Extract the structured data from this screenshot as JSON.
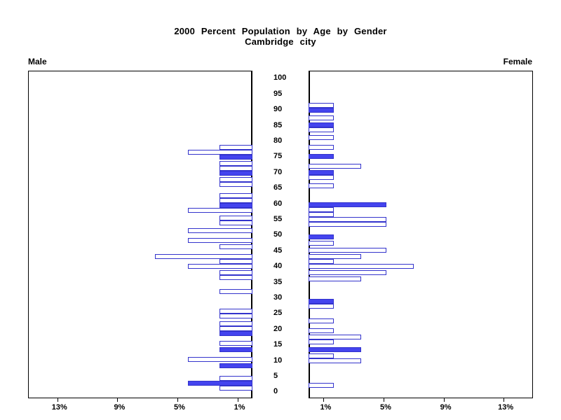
{
  "title": {
    "line1": "2000 Percent Population by Age by Gender",
    "line2": "Cambridge city"
  },
  "side_labels": {
    "male": "Male",
    "female": "Female"
  },
  "age_axis": {
    "tick_ages": [
      100,
      95,
      90,
      85,
      80,
      75,
      70,
      65,
      60,
      55,
      50,
      45,
      40,
      35,
      30,
      25,
      20,
      15,
      10,
      5,
      0
    ]
  },
  "pct_axis": {
    "male_ticks": [
      {
        "label": "13%",
        "value": 13
      },
      {
        "label": "9%",
        "value": 9
      },
      {
        "label": "5%",
        "value": 5
      },
      {
        "label": "1%",
        "value": 1
      }
    ],
    "female_ticks": [
      {
        "label": "1%",
        "value": 1
      },
      {
        "label": "5%",
        "value": 5
      },
      {
        "label": "9%",
        "value": 9
      },
      {
        "label": "13%",
        "value": 13
      }
    ]
  },
  "colors": {
    "bar_fill": "#4444ee",
    "bar_outline": "#3333cc",
    "bar_open_interior": "#ffffff",
    "axis": "#000000",
    "text": "#000000",
    "background": "#ffffff"
  },
  "chart_data": {
    "type": "bar",
    "subtype": "population-pyramid",
    "title": "2000 Percent Population by Age by Gender",
    "subtitle": "Cambridge city",
    "x_axis": {
      "tick_values_pct": [
        1,
        5,
        9,
        13
      ],
      "range_pct": [
        0,
        14.95
      ]
    },
    "y_axis": {
      "range_years": [
        0,
        100
      ],
      "tick_step_years": 5
    },
    "style_rule": "solid-filled bars occur at ages that are multiples of 5; all other bars are outlined (open)",
    "series": [
      {
        "name": "Male",
        "panel": "left",
        "unit_pct": 2.2,
        "points": [
          {
            "age": 78,
            "pct": 2.2,
            "filled": false
          },
          {
            "age": 77,
            "pct": 4.3,
            "filled": false
          },
          {
            "age": 75,
            "pct": 2.2,
            "filled": true
          },
          {
            "age": 73,
            "pct": 2.2,
            "filled": false
          },
          {
            "age": 72,
            "pct": 2.2,
            "filled": false
          },
          {
            "age": 70,
            "pct": 2.2,
            "filled": true
          },
          {
            "age": 68,
            "pct": 2.2,
            "filled": false
          },
          {
            "age": 67,
            "pct": 2.2,
            "filled": false
          },
          {
            "age": 63,
            "pct": 2.2,
            "filled": false
          },
          {
            "age": 62,
            "pct": 2.2,
            "filled": false
          },
          {
            "age": 60,
            "pct": 2.2,
            "filled": true
          },
          {
            "age": 59,
            "pct": 4.3,
            "filled": false
          },
          {
            "age": 56,
            "pct": 2.2,
            "filled": false
          },
          {
            "age": 55,
            "pct": 2.2,
            "filled": false
          },
          {
            "age": 52,
            "pct": 4.3,
            "filled": false
          },
          {
            "age": 49,
            "pct": 4.3,
            "filled": false
          },
          {
            "age": 47,
            "pct": 2.2,
            "filled": false
          },
          {
            "age": 44,
            "pct": 6.5,
            "filled": false
          },
          {
            "age": 43,
            "pct": 2.2,
            "filled": false
          },
          {
            "age": 41,
            "pct": 4.3,
            "filled": false
          },
          {
            "age": 39,
            "pct": 2.2,
            "filled": false
          },
          {
            "age": 38,
            "pct": 2.2,
            "filled": false
          },
          {
            "age": 33,
            "pct": 2.2,
            "filled": false
          },
          {
            "age": 27,
            "pct": 2.2,
            "filled": false
          },
          {
            "age": 26,
            "pct": 2.2,
            "filled": false
          },
          {
            "age": 23,
            "pct": 2.2,
            "filled": false
          },
          {
            "age": 22,
            "pct": 2.2,
            "filled": false
          },
          {
            "age": 20,
            "pct": 2.2,
            "filled": true
          },
          {
            "age": 17,
            "pct": 2.2,
            "filled": false
          },
          {
            "age": 15,
            "pct": 2.2,
            "filled": true
          },
          {
            "age": 12,
            "pct": 4.3,
            "filled": false
          },
          {
            "age": 10,
            "pct": 2.2,
            "filled": true
          },
          {
            "age": 6,
            "pct": 2.2,
            "filled": false
          },
          {
            "age": 5,
            "pct": 4.3,
            "filled": true
          },
          {
            "age": 4,
            "pct": 2.2,
            "filled": false
          }
        ]
      },
      {
        "name": "Female",
        "panel": "right",
        "unit_pct": 1.7,
        "points": [
          {
            "age": 91,
            "pct": 1.7,
            "filled": false
          },
          {
            "age": 90,
            "pct": 1.7,
            "filled": true
          },
          {
            "age": 87,
            "pct": 1.7,
            "filled": false
          },
          {
            "age": 85,
            "pct": 1.7,
            "filled": true
          },
          {
            "age": 84,
            "pct": 1.7,
            "filled": false
          },
          {
            "age": 81,
            "pct": 1.7,
            "filled": false
          },
          {
            "age": 78,
            "pct": 1.7,
            "filled": false
          },
          {
            "age": 75,
            "pct": 1.7,
            "filled": true
          },
          {
            "age": 72,
            "pct": 3.5,
            "filled": false
          },
          {
            "age": 70,
            "pct": 1.7,
            "filled": true
          },
          {
            "age": 69,
            "pct": 1.7,
            "filled": false
          },
          {
            "age": 66,
            "pct": 1.7,
            "filled": false
          },
          {
            "age": 60,
            "pct": 5.2,
            "filled": true
          },
          {
            "age": 59,
            "pct": 1.7,
            "filled": false
          },
          {
            "age": 58,
            "pct": 1.7,
            "filled": false
          },
          {
            "age": 56,
            "pct": 5.2,
            "filled": false
          },
          {
            "age": 54,
            "pct": 5.2,
            "filled": false
          },
          {
            "age": 50,
            "pct": 1.7,
            "filled": true
          },
          {
            "age": 48,
            "pct": 1.7,
            "filled": false
          },
          {
            "age": 46,
            "pct": 5.2,
            "filled": false
          },
          {
            "age": 44,
            "pct": 3.5,
            "filled": false
          },
          {
            "age": 43,
            "pct": 1.7,
            "filled": false
          },
          {
            "age": 41,
            "pct": 7.0,
            "filled": false
          },
          {
            "age": 39,
            "pct": 5.2,
            "filled": false
          },
          {
            "age": 37,
            "pct": 3.5,
            "filled": false
          },
          {
            "age": 30,
            "pct": 1.7,
            "filled": true
          },
          {
            "age": 29,
            "pct": 1.7,
            "filled": false
          },
          {
            "age": 24,
            "pct": 1.7,
            "filled": false
          },
          {
            "age": 21,
            "pct": 1.7,
            "filled": false
          },
          {
            "age": 19,
            "pct": 3.5,
            "filled": false
          },
          {
            "age": 18,
            "pct": 1.7,
            "filled": false
          },
          {
            "age": 15,
            "pct": 3.5,
            "filled": true
          },
          {
            "age": 13,
            "pct": 1.7,
            "filled": false
          },
          {
            "age": 12,
            "pct": 3.5,
            "filled": false
          },
          {
            "age": 4,
            "pct": 1.7,
            "filled": false
          }
        ]
      }
    ]
  }
}
